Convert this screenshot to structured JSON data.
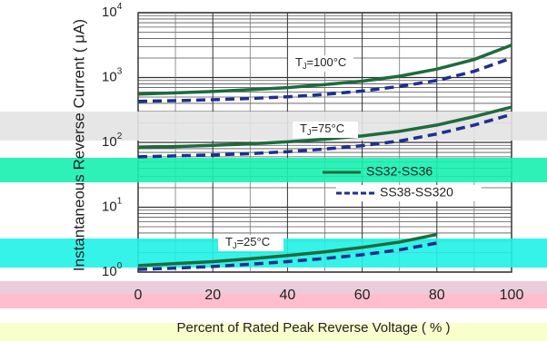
{
  "chart_data": {
    "type": "line",
    "ylabel": "Instantaneous Reverse Current ( μA)",
    "xlabel": "Percent of Rated Peak Reverse Voltage ( % )",
    "x": [
      0,
      10,
      20,
      30,
      40,
      50,
      60,
      70,
      80,
      90,
      100
    ],
    "series": [
      {
        "name": "SS32-SS36",
        "color": "#1e6b3c",
        "dash": false,
        "values": [
          556,
          580,
          610,
          650,
          700,
          780,
          880,
          1050,
          1350,
          1900,
          3162
        ]
      },
      {
        "name": "SS38-SS320",
        "color": "#1f2f8f",
        "dash": true,
        "values": [
          430,
          440,
          455,
          475,
          505,
          550,
          620,
          730,
          900,
          1250,
          2000
        ]
      },
      {
        "name": "SS32-SS36",
        "color": "#1e6b3c",
        "dash": false,
        "values": [
          83,
          86,
          90,
          95,
          102,
          112,
          126,
          148,
          185,
          250,
          350
        ]
      },
      {
        "name": "SS38-SS320",
        "color": "#1f2f8f",
        "dash": true,
        "values": [
          60,
          62,
          64,
          67,
          72,
          79,
          89,
          105,
          135,
          185,
          270
        ]
      },
      {
        "name": "SS32-SS36",
        "color": "#1e6b3c",
        "dash": false,
        "values": [
          1.26,
          1.35,
          1.45,
          1.6,
          1.8,
          2.05,
          2.4,
          2.9,
          3.8,
          null,
          null
        ]
      },
      {
        "name": "SS38-SS320",
        "color": "#1f2f8f",
        "dash": true,
        "values": [
          1.1,
          1.15,
          1.22,
          1.32,
          1.45,
          1.62,
          1.85,
          2.2,
          2.8,
          null,
          null
        ]
      }
    ],
    "annotations": [
      {
        "main": "T",
        "sub": "J",
        "rest": "=100°C"
      },
      {
        "main": "T",
        "sub": "J",
        "rest": "=75°C"
      },
      {
        "main": "T",
        "sub": "J",
        "rest": "=25°C"
      }
    ],
    "log_y": true,
    "grid": true,
    "xlim": [
      0,
      100
    ],
    "xticks": [
      0,
      20,
      40,
      60,
      80,
      100
    ],
    "ylim": [
      1,
      10000
    ],
    "yticks": [
      {
        "value": 1,
        "label": "10",
        "sup": "0"
      },
      {
        "value": 10,
        "label": "10",
        "sup": "1"
      },
      {
        "value": 100,
        "label": "10",
        "sup": "2"
      },
      {
        "value": 1000,
        "label": "10",
        "sup": "3"
      },
      {
        "value": 10000,
        "label": "10",
        "sup": "4"
      }
    ]
  }
}
